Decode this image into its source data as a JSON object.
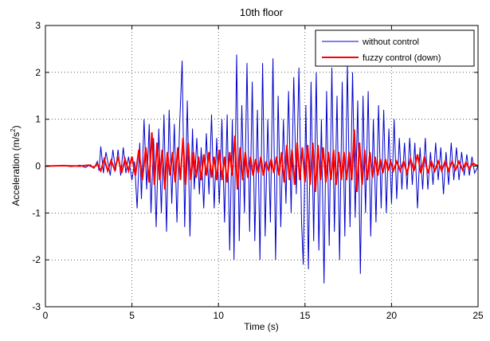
{
  "chart_data": {
    "type": "line",
    "title": "10th floor",
    "xlabel": "Time (s)",
    "ylabel_main": "Acceleration (m/s",
    "ylabel_sup": "2",
    "ylabel_close": ")",
    "xlim": [
      0,
      25
    ],
    "ylim": [
      -3,
      3
    ],
    "xticks": [
      0,
      5,
      10,
      15,
      20,
      25
    ],
    "yticks": [
      -3,
      -2,
      -1,
      0,
      1,
      2,
      3
    ],
    "grid": true,
    "legend_position": "top-right",
    "series": [
      {
        "name": "without control",
        "color": "#0000cc",
        "points": [
          [
            0,
            0
          ],
          [
            1,
            0.01
          ],
          [
            1.5,
            -0.01
          ],
          [
            2,
            0.02
          ],
          [
            2.3,
            -0.03
          ],
          [
            2.6,
            0.03
          ],
          [
            2.8,
            -0.05
          ],
          [
            3.0,
            0.1
          ],
          [
            3.1,
            -0.1
          ],
          [
            3.2,
            0.42
          ],
          [
            3.35,
            -0.15
          ],
          [
            3.5,
            0.3
          ],
          [
            3.6,
            0.1
          ],
          [
            3.75,
            -0.2
          ],
          [
            3.9,
            0.35
          ],
          [
            4.05,
            -0.1
          ],
          [
            4.2,
            0.35
          ],
          [
            4.35,
            -0.2
          ],
          [
            4.5,
            0.4
          ],
          [
            4.65,
            -0.15
          ],
          [
            4.8,
            0.2
          ],
          [
            5.0,
            -0.3
          ],
          [
            5.15,
            0.1
          ],
          [
            5.3,
            -0.9
          ],
          [
            5.45,
            0.5
          ],
          [
            5.55,
            -0.7
          ],
          [
            5.7,
            1.0
          ],
          [
            5.85,
            -0.5
          ],
          [
            6.0,
            0.9
          ],
          [
            6.1,
            -1.0
          ],
          [
            6.25,
            0.6
          ],
          [
            6.4,
            -1.3
          ],
          [
            6.55,
            0.8
          ],
          [
            6.7,
            -1.0
          ],
          [
            6.85,
            1.1
          ],
          [
            7.0,
            -1.4
          ],
          [
            7.15,
            1.2
          ],
          [
            7.3,
            -0.8
          ],
          [
            7.45,
            0.9
          ],
          [
            7.6,
            -1.2
          ],
          [
            7.75,
            0.8
          ],
          [
            7.9,
            2.25
          ],
          [
            8.05,
            -1.3
          ],
          [
            8.2,
            1.4
          ],
          [
            8.35,
            -1.5
          ],
          [
            8.5,
            0.8
          ],
          [
            8.6,
            -0.5
          ],
          [
            8.75,
            0.6
          ],
          [
            8.9,
            -0.6
          ],
          [
            9.0,
            0.4
          ],
          [
            9.15,
            -0.9
          ],
          [
            9.3,
            0.7
          ],
          [
            9.45,
            -0.6
          ],
          [
            9.6,
            1.1
          ],
          [
            9.75,
            -0.9
          ],
          [
            9.9,
            0.6
          ],
          [
            10.05,
            -0.8
          ],
          [
            10.2,
            1.0
          ],
          [
            10.35,
            -1.2
          ],
          [
            10.5,
            1.1
          ],
          [
            10.65,
            -1.8
          ],
          [
            10.8,
            1.0
          ],
          [
            10.9,
            -2.0
          ],
          [
            11.05,
            2.38
          ],
          [
            11.2,
            -1.6
          ],
          [
            11.35,
            1.3
          ],
          [
            11.5,
            -1.0
          ],
          [
            11.65,
            2.2
          ],
          [
            11.8,
            -1.4
          ],
          [
            11.95,
            1.8
          ],
          [
            12.1,
            -1.6
          ],
          [
            12.25,
            1.2
          ],
          [
            12.4,
            -2.0
          ],
          [
            12.55,
            2.2
          ],
          [
            12.7,
            -1.5
          ],
          [
            12.85,
            1.0
          ],
          [
            13.0,
            -1.2
          ],
          [
            13.15,
            2.3
          ],
          [
            13.3,
            -2.0
          ],
          [
            13.45,
            1.5
          ],
          [
            13.6,
            -1.3
          ],
          [
            13.75,
            1.0
          ],
          [
            13.9,
            -0.8
          ],
          [
            14.05,
            1.6
          ],
          [
            14.2,
            -1.0
          ],
          [
            14.35,
            1.9
          ],
          [
            14.5,
            -0.6
          ],
          [
            14.65,
            2.1
          ],
          [
            14.8,
            -1.2
          ],
          [
            14.9,
            -2.1
          ],
          [
            15.05,
            1.3
          ],
          [
            15.2,
            -2.2
          ],
          [
            15.35,
            1.8
          ],
          [
            15.5,
            -1.6
          ],
          [
            15.65,
            2.0
          ],
          [
            15.8,
            -1.8
          ],
          [
            15.95,
            1.0
          ],
          [
            16.1,
            -2.5
          ],
          [
            16.25,
            1.6
          ],
          [
            16.4,
            -1.7
          ],
          [
            16.55,
            2.1
          ],
          [
            16.7,
            -1.4
          ],
          [
            16.85,
            1.5
          ],
          [
            17.0,
            -2.0
          ],
          [
            17.15,
            1.8
          ],
          [
            17.3,
            -1.5
          ],
          [
            17.45,
            2.2
          ],
          [
            17.6,
            -1.3
          ],
          [
            17.75,
            2.0
          ],
          [
            17.9,
            -1.1
          ],
          [
            18.05,
            1.4
          ],
          [
            18.2,
            -2.3
          ],
          [
            18.35,
            1.5
          ],
          [
            18.5,
            -1.0
          ],
          [
            18.65,
            1.6
          ],
          [
            18.8,
            -1.5
          ],
          [
            18.95,
            1.0
          ],
          [
            19.1,
            -1.2
          ],
          [
            19.25,
            1.3
          ],
          [
            19.4,
            -0.9
          ],
          [
            19.55,
            1.2
          ],
          [
            19.7,
            -1.0
          ],
          [
            19.85,
            0.8
          ],
          [
            20.0,
            -0.8
          ],
          [
            20.15,
            1.0
          ],
          [
            20.3,
            -0.7
          ],
          [
            20.45,
            0.6
          ],
          [
            20.6,
            -0.5
          ],
          [
            20.75,
            0.5
          ],
          [
            20.9,
            -0.5
          ],
          [
            21.05,
            0.6
          ],
          [
            21.2,
            -0.4
          ],
          [
            21.35,
            0.5
          ],
          [
            21.5,
            -0.9
          ],
          [
            21.65,
            0.4
          ],
          [
            21.8,
            -0.5
          ],
          [
            21.95,
            0.6
          ],
          [
            22.1,
            -0.5
          ],
          [
            22.25,
            0.3
          ],
          [
            22.4,
            -0.4
          ],
          [
            22.55,
            0.5
          ],
          [
            22.7,
            -0.3
          ],
          [
            22.85,
            0.4
          ],
          [
            23.0,
            -0.6
          ],
          [
            23.15,
            0.3
          ],
          [
            23.3,
            -0.4
          ],
          [
            23.45,
            0.5
          ],
          [
            23.6,
            -0.3
          ],
          [
            23.75,
            0.4
          ],
          [
            23.9,
            -0.3
          ],
          [
            24.05,
            0.3
          ],
          [
            24.2,
            -0.2
          ],
          [
            24.35,
            0.25
          ],
          [
            24.5,
            -0.2
          ],
          [
            24.65,
            0.2
          ],
          [
            24.8,
            -0.15
          ],
          [
            25.0,
            0.0
          ]
        ]
      },
      {
        "name": "fuzzy control (down)",
        "color": "#ff0000",
        "points": [
          [
            0,
            0
          ],
          [
            1,
            0.01
          ],
          [
            2,
            0.0
          ],
          [
            2.5,
            0.02
          ],
          [
            2.8,
            -0.03
          ],
          [
            3.0,
            0.05
          ],
          [
            3.2,
            -0.1
          ],
          [
            3.4,
            0.15
          ],
          [
            3.6,
            -0.1
          ],
          [
            3.8,
            0.12
          ],
          [
            4.0,
            -0.08
          ],
          [
            4.2,
            0.2
          ],
          [
            4.4,
            -0.15
          ],
          [
            4.6,
            0.15
          ],
          [
            4.8,
            -0.1
          ],
          [
            5.0,
            0.2
          ],
          [
            5.2,
            -0.2
          ],
          [
            5.4,
            0.35
          ],
          [
            5.6,
            -0.3
          ],
          [
            5.8,
            0.4
          ],
          [
            6.0,
            -0.35
          ],
          [
            6.15,
            0.72
          ],
          [
            6.3,
            -0.4
          ],
          [
            6.45,
            0.5
          ],
          [
            6.6,
            -0.3
          ],
          [
            6.75,
            0.35
          ],
          [
            6.9,
            -0.5
          ],
          [
            7.05,
            0.3
          ],
          [
            7.2,
            -0.2
          ],
          [
            7.35,
            0.3
          ],
          [
            7.5,
            -0.35
          ],
          [
            7.65,
            0.4
          ],
          [
            7.8,
            -0.3
          ],
          [
            7.95,
            0.6
          ],
          [
            8.1,
            -0.4
          ],
          [
            8.25,
            0.5
          ],
          [
            8.4,
            -0.3
          ],
          [
            8.55,
            0.3
          ],
          [
            8.7,
            -0.25
          ],
          [
            8.85,
            0.2
          ],
          [
            9.0,
            -0.3
          ],
          [
            9.15,
            0.25
          ],
          [
            9.3,
            -0.2
          ],
          [
            9.45,
            0.3
          ],
          [
            9.6,
            -0.25
          ],
          [
            9.75,
            0.2
          ],
          [
            9.9,
            -0.3
          ],
          [
            10.05,
            0.35
          ],
          [
            10.2,
            -0.3
          ],
          [
            10.35,
            0.2
          ],
          [
            10.5,
            -0.35
          ],
          [
            10.65,
            0.3
          ],
          [
            10.8,
            -0.2
          ],
          [
            10.95,
            0.65
          ],
          [
            11.1,
            -0.5
          ],
          [
            11.25,
            0.4
          ],
          [
            11.4,
            -0.3
          ],
          [
            11.55,
            0.3
          ],
          [
            11.7,
            -0.25
          ],
          [
            11.85,
            0.2
          ],
          [
            12.0,
            -0.2
          ],
          [
            12.15,
            0.15
          ],
          [
            12.3,
            -0.15
          ],
          [
            12.45,
            0.2
          ],
          [
            12.6,
            -0.2
          ],
          [
            12.75,
            0.1
          ],
          [
            12.9,
            -0.1
          ],
          [
            13.05,
            0.15
          ],
          [
            13.2,
            -0.15
          ],
          [
            13.35,
            0.2
          ],
          [
            13.5,
            -0.2
          ],
          [
            13.65,
            0.3
          ],
          [
            13.8,
            -0.35
          ],
          [
            13.95,
            0.45
          ],
          [
            14.1,
            -0.3
          ],
          [
            14.25,
            0.35
          ],
          [
            14.4,
            -0.4
          ],
          [
            14.55,
            0.5
          ],
          [
            14.7,
            -0.3
          ],
          [
            14.85,
            0.4
          ],
          [
            15.0,
            -0.35
          ],
          [
            15.15,
            0.45
          ],
          [
            15.3,
            -0.4
          ],
          [
            15.45,
            0.5
          ],
          [
            15.6,
            -0.55
          ],
          [
            15.75,
            0.45
          ],
          [
            15.9,
            -0.3
          ],
          [
            16.05,
            0.4
          ],
          [
            16.2,
            -0.35
          ],
          [
            16.35,
            0.3
          ],
          [
            16.5,
            -0.3
          ],
          [
            16.65,
            0.35
          ],
          [
            16.8,
            -0.4
          ],
          [
            16.95,
            0.3
          ],
          [
            17.1,
            -0.3
          ],
          [
            17.25,
            0.3
          ],
          [
            17.4,
            -0.3
          ],
          [
            17.55,
            0.3
          ],
          [
            17.7,
            -0.3
          ],
          [
            17.85,
            0.78
          ],
          [
            18.0,
            -0.55
          ],
          [
            18.15,
            0.5
          ],
          [
            18.3,
            -0.4
          ],
          [
            18.45,
            0.35
          ],
          [
            18.6,
            -0.3
          ],
          [
            18.75,
            0.3
          ],
          [
            18.9,
            -0.25
          ],
          [
            19.05,
            0.2
          ],
          [
            19.2,
            -0.2
          ],
          [
            19.35,
            0.15
          ],
          [
            19.5,
            -0.15
          ],
          [
            19.65,
            0.15
          ],
          [
            19.8,
            -0.1
          ],
          [
            19.95,
            0.1
          ],
          [
            20.1,
            -0.1
          ],
          [
            20.3,
            0.1
          ],
          [
            20.5,
            -0.1
          ],
          [
            20.7,
            0.1
          ],
          [
            20.9,
            -0.15
          ],
          [
            21.1,
            0.15
          ],
          [
            21.3,
            -0.1
          ],
          [
            21.5,
            0.25
          ],
          [
            21.7,
            -0.15
          ],
          [
            21.9,
            0.2
          ],
          [
            22.1,
            -0.15
          ],
          [
            22.3,
            0.1
          ],
          [
            22.5,
            -0.1
          ],
          [
            22.7,
            0.1
          ],
          [
            22.9,
            -0.1
          ],
          [
            23.1,
            0.1
          ],
          [
            23.3,
            -0.1
          ],
          [
            23.5,
            0.1
          ],
          [
            23.7,
            -0.08
          ],
          [
            23.9,
            0.1
          ],
          [
            24.1,
            -0.08
          ],
          [
            24.3,
            0.08
          ],
          [
            24.5,
            -0.06
          ],
          [
            24.7,
            0.06
          ],
          [
            25.0,
            0.0
          ]
        ]
      }
    ]
  }
}
